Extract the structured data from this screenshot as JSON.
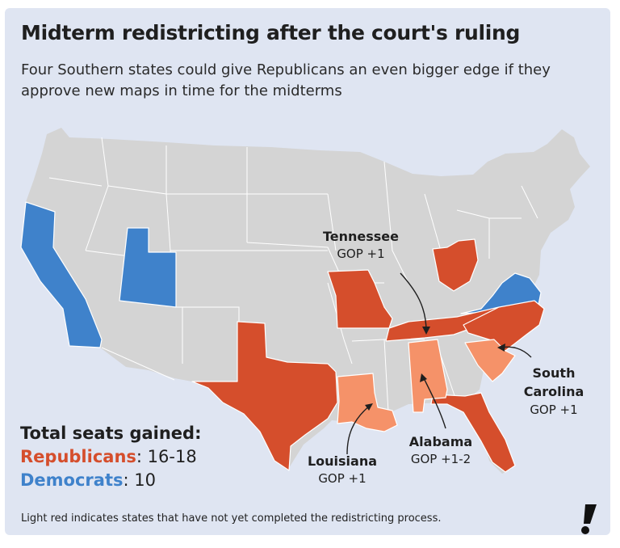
{
  "title": "Midterm redistricting after the court's ruling",
  "subtitle": "Four Southern states could give Republicans an even bigger edge if they approve new maps in time for the midterms",
  "colors": {
    "background": "#dfe5f2",
    "neutral_state": "#d4d4d4",
    "republican": "#d54e2c",
    "republican_pending": "#f59269",
    "democrat": "#3f82cb"
  },
  "states": {
    "republican": [
      "Texas",
      "Missouri",
      "Ohio",
      "North Carolina",
      "Tennessee",
      "Florida"
    ],
    "republican_pending": [
      "Louisiana",
      "Alabama",
      "South Carolina"
    ],
    "democrat": [
      "California",
      "Utah",
      "Virginia"
    ]
  },
  "annotations": {
    "tennessee": {
      "name": "Tennessee",
      "value": "GOP +1"
    },
    "south_carolina": {
      "name_line1": "South",
      "name_line2": "Carolina",
      "value": "GOP +1"
    },
    "alabama": {
      "name": "Alabama",
      "value": "GOP +1-2"
    },
    "louisiana": {
      "name": "Louisiana",
      "value": "GOP +1"
    }
  },
  "totals": {
    "heading": "Total seats gained:",
    "republicans_label": "Republicans",
    "republicans_value": ": 16-18",
    "democrats_label": "Democrats",
    "democrats_value": ": 10"
  },
  "footnote": "Light red indicates states that have not yet completed the redistricting process.",
  "logo_icon": "exclamation-logo-icon"
}
